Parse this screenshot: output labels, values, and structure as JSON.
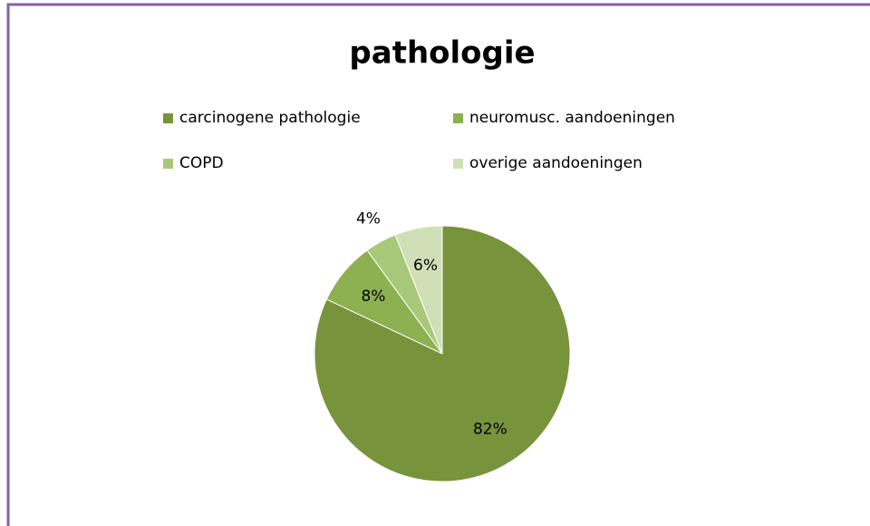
{
  "chart_data": {
    "type": "pie",
    "title": "pathologie",
    "categories": [
      "carcinogene pathologie",
      "neuromusc. aandoeningen",
      "COPD",
      "overige aandoeningen"
    ],
    "values": [
      82,
      8,
      4,
      6
    ],
    "value_labels": [
      "82%",
      "8%",
      "4%",
      "6%"
    ],
    "colors": [
      "#77933c",
      "#8db050",
      "#aac87a",
      "#d0dfb5"
    ],
    "legend": "top"
  }
}
